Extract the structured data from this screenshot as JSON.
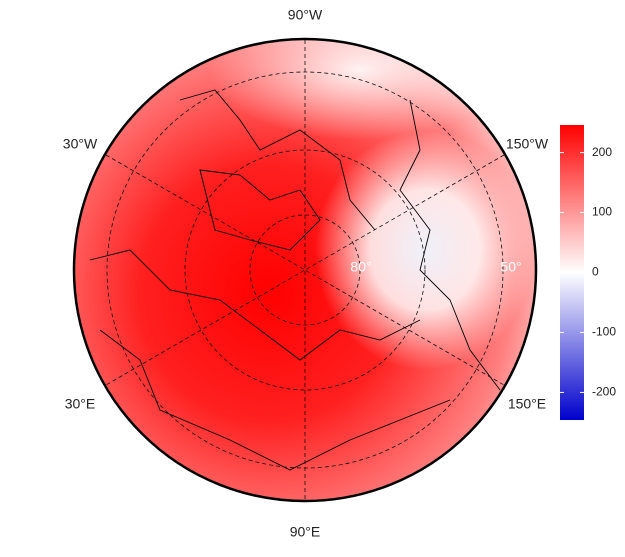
{
  "map": {
    "lon_labels": [
      "90°W",
      "30°W",
      "150°W",
      "30°E",
      "150°E",
      "90°E"
    ],
    "lat_labels": [
      "80°",
      "50°"
    ],
    "colorbar": {
      "ylim": [
        -246,
        246
      ],
      "yticks": [
        200,
        100,
        0,
        -100,
        -200
      ],
      "colors": [
        "#0000cc",
        "#ffffff",
        "#ff0000"
      ]
    }
  }
}
